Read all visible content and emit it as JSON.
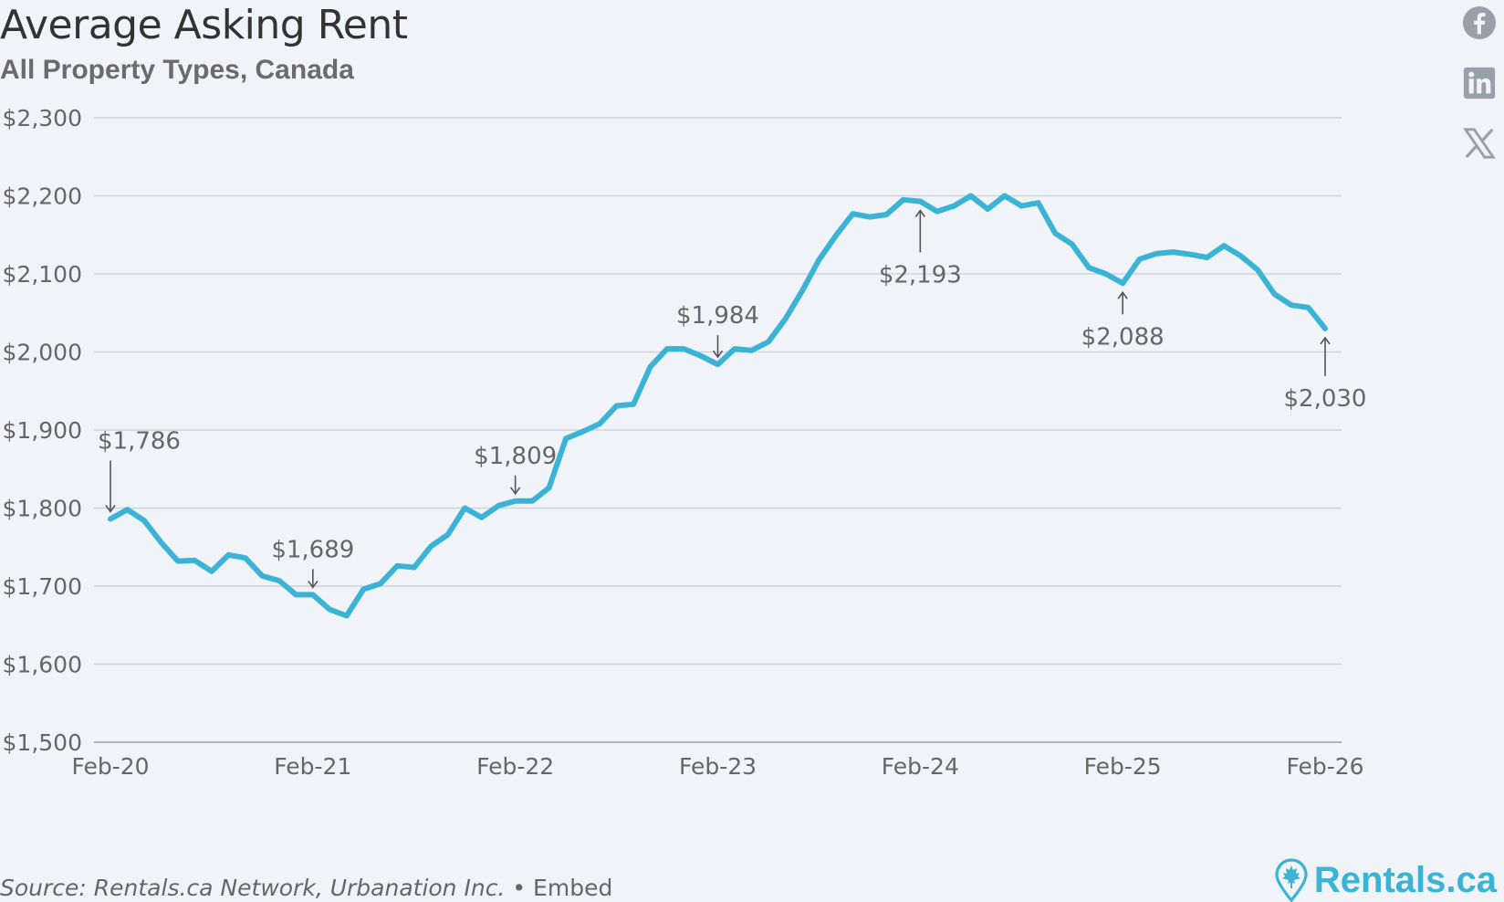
{
  "header": {
    "title": "Average Asking Rent",
    "subtitle": "All Property Types, Canada"
  },
  "footer": {
    "source": "Source: Rentals.ca Network, Urbanation Inc.",
    "separator": "•",
    "embed_label": "Embed",
    "brand": "Rentals.ca"
  },
  "social": [
    "facebook-icon",
    "linkedin-icon",
    "x-icon"
  ],
  "colors": {
    "line": "#3bb3d4",
    "grid": "#cfd3da",
    "text": "#666666",
    "brand": "#3bb3d4"
  },
  "chart_data": {
    "type": "line",
    "title": "Average Asking Rent",
    "subtitle": "All Property Types, Canada",
    "xlabel": "",
    "ylabel": "",
    "ylim": [
      1500,
      2300
    ],
    "yticks": [
      1500,
      1600,
      1700,
      1800,
      1900,
      2000,
      2100,
      2200,
      2300
    ],
    "ytick_labels": [
      "$1,500",
      "$1,600",
      "$1,700",
      "$1,800",
      "$1,900",
      "$2,000",
      "$2,100",
      "$2,200",
      "$2,300"
    ],
    "xtick_labels": [
      "Feb-20",
      "Feb-21",
      "Feb-22",
      "Feb-23",
      "Feb-24",
      "Feb-25",
      "Feb-26"
    ],
    "xtick_months": [
      0,
      12,
      24,
      36,
      48,
      60,
      72
    ],
    "grid": true,
    "series": [
      {
        "values": [
          1786,
          1798,
          1784,
          1756,
          1732,
          1733,
          1719,
          1740,
          1736,
          1713,
          1707,
          1689,
          1689,
          1670,
          1662,
          1696,
          1703,
          1726,
          1724,
          1751,
          1766,
          1800,
          1788,
          1803,
          1809,
          1809,
          1826,
          1889,
          1898,
          1908,
          1931,
          1933,
          1981,
          2004,
          2004,
          1995,
          1984,
          2004,
          2002,
          2013,
          2042,
          2078,
          2118,
          2149,
          2177,
          2173,
          2176,
          2195,
          2193,
          2180,
          2187,
          2200,
          2183,
          2200,
          2187,
          2191,
          2152,
          2138,
          2108,
          2100,
          2088,
          2119,
          2126,
          2128,
          2125,
          2121,
          2136,
          2123,
          2105,
          2074,
          2060,
          2057,
          2030
        ]
      }
    ],
    "annotations": [
      {
        "label": "$1,786",
        "month": 0,
        "value": 1786,
        "arrow": "down"
      },
      {
        "label": "$1,689",
        "month": 12,
        "value": 1689,
        "arrow": "down"
      },
      {
        "label": "$1,809",
        "month": 24,
        "value": 1809,
        "arrow": "down"
      },
      {
        "label": "$1,984",
        "month": 36,
        "value": 1984,
        "arrow": "down"
      },
      {
        "label": "$2,193",
        "month": 48,
        "value": 2193,
        "arrow": "up"
      },
      {
        "label": "$2,088",
        "month": 60,
        "value": 2088,
        "arrow": "up"
      },
      {
        "label": "$2,030",
        "month": 72,
        "value": 2030,
        "arrow": "up"
      }
    ]
  }
}
